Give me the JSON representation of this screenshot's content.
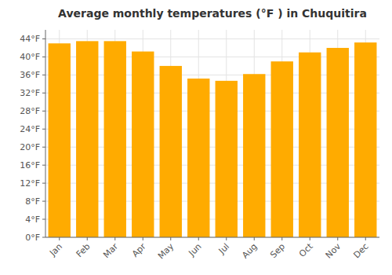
{
  "chart_data": {
    "type": "bar",
    "title": "Average monthly temperatures (°F ) in Chuquitira",
    "categories": [
      "Jan",
      "Feb",
      "Mar",
      "Apr",
      "May",
      "Jun",
      "Jul",
      "Aug",
      "Sep",
      "Oct",
      "Nov",
      "Dec"
    ],
    "values": [
      43.0,
      43.5,
      43.5,
      41.2,
      38.0,
      35.2,
      34.7,
      36.2,
      39.0,
      41.0,
      42.0,
      43.2
    ],
    "color": "#FFAB00",
    "ylim": [
      0,
      46
    ],
    "yticks": [
      {
        "value": 0,
        "label": "0°F"
      },
      {
        "value": 4,
        "label": "4°F"
      },
      {
        "value": 8,
        "label": "8°F"
      },
      {
        "value": 12,
        "label": "12°F"
      },
      {
        "value": 16,
        "label": "16°F"
      },
      {
        "value": 20,
        "label": "20°F"
      },
      {
        "value": 24,
        "label": "24°F"
      },
      {
        "value": 28,
        "label": "28°F"
      },
      {
        "value": 32,
        "label": "32°F"
      },
      {
        "value": 36,
        "label": "36°F"
      },
      {
        "value": 40,
        "label": "40°F"
      },
      {
        "value": 44,
        "label": "44°F"
      }
    ],
    "grid": true
  }
}
